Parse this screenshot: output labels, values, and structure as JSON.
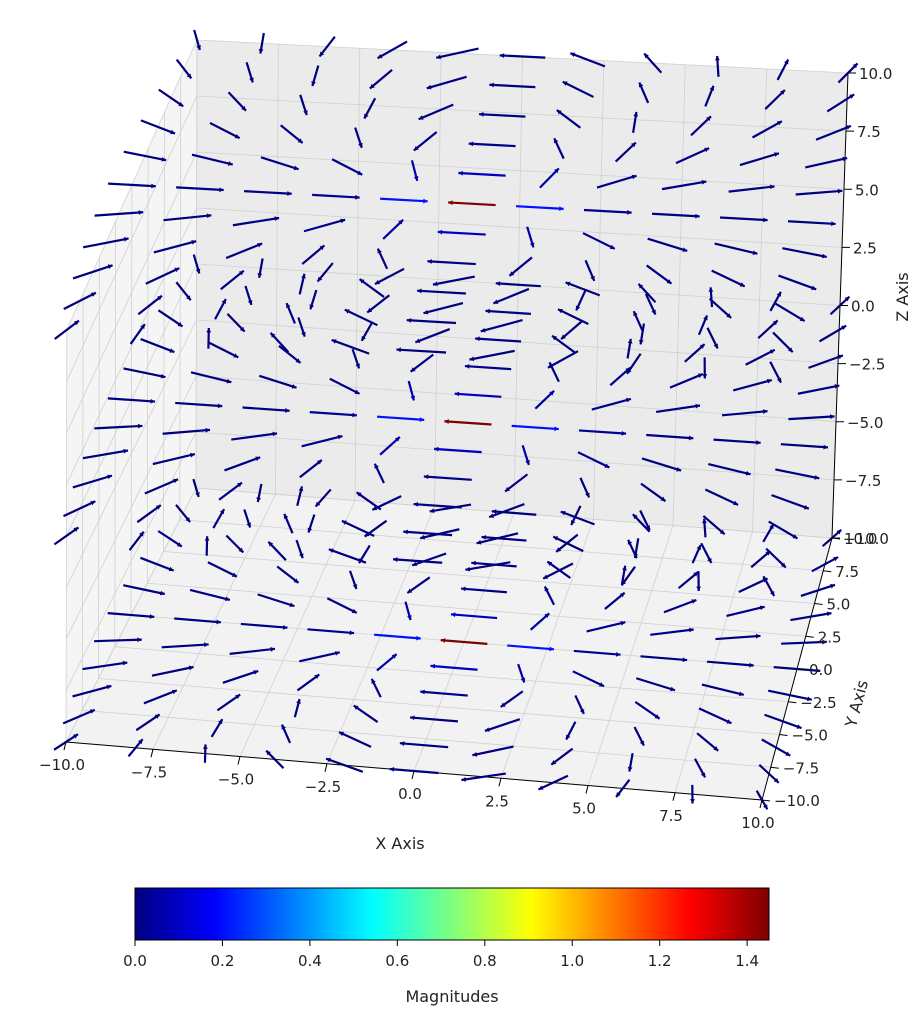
{
  "chart_data": {
    "type": "quiver3d",
    "title": "",
    "xlabel": "X Axis",
    "ylabel": "Y Axis",
    "zlabel": "Z Axis",
    "xlim": [
      -10,
      10
    ],
    "ylim": [
      -10,
      10
    ],
    "zlim": [
      -10,
      10
    ],
    "x_ticks": [
      "−10.0",
      "−7.5",
      "−5.0",
      "−2.5",
      "0.0",
      "2.5",
      "5.0",
      "7.5",
      "10.0"
    ],
    "y_ticks": [
      "−10.0",
      "−7.5",
      "−5.0",
      "−2.5",
      "0.0",
      "2.5",
      "5.0",
      "7.5",
      "10.0"
    ],
    "z_ticks": [
      "−10.0",
      "−7.5",
      "−5.0",
      "−2.5",
      "0.0",
      "2.5",
      "5.0",
      "7.5",
      "10.0"
    ],
    "grid": true,
    "z_layers": [
      -10,
      0,
      10
    ],
    "grid_xy": [
      -10,
      -8,
      -6,
      -4,
      -2,
      0,
      2,
      4,
      6,
      8,
      10
    ],
    "field": "dipole field on XY plane, charges at (±0.5, 0)",
    "colormap": "jet",
    "colorbar": {
      "label": "Magnitudes",
      "min": 0.0,
      "max": 1.45,
      "ticks": [
        "0.0",
        "0.2",
        "0.4",
        "0.6",
        "0.8",
        "1.0",
        "1.2",
        "1.4"
      ],
      "colors": [
        "#00007f",
        "#0000ff",
        "#007fff",
        "#00ffff",
        "#7fff7f",
        "#ffff00",
        "#ff7f00",
        "#ff0000",
        "#7f0000"
      ]
    }
  }
}
